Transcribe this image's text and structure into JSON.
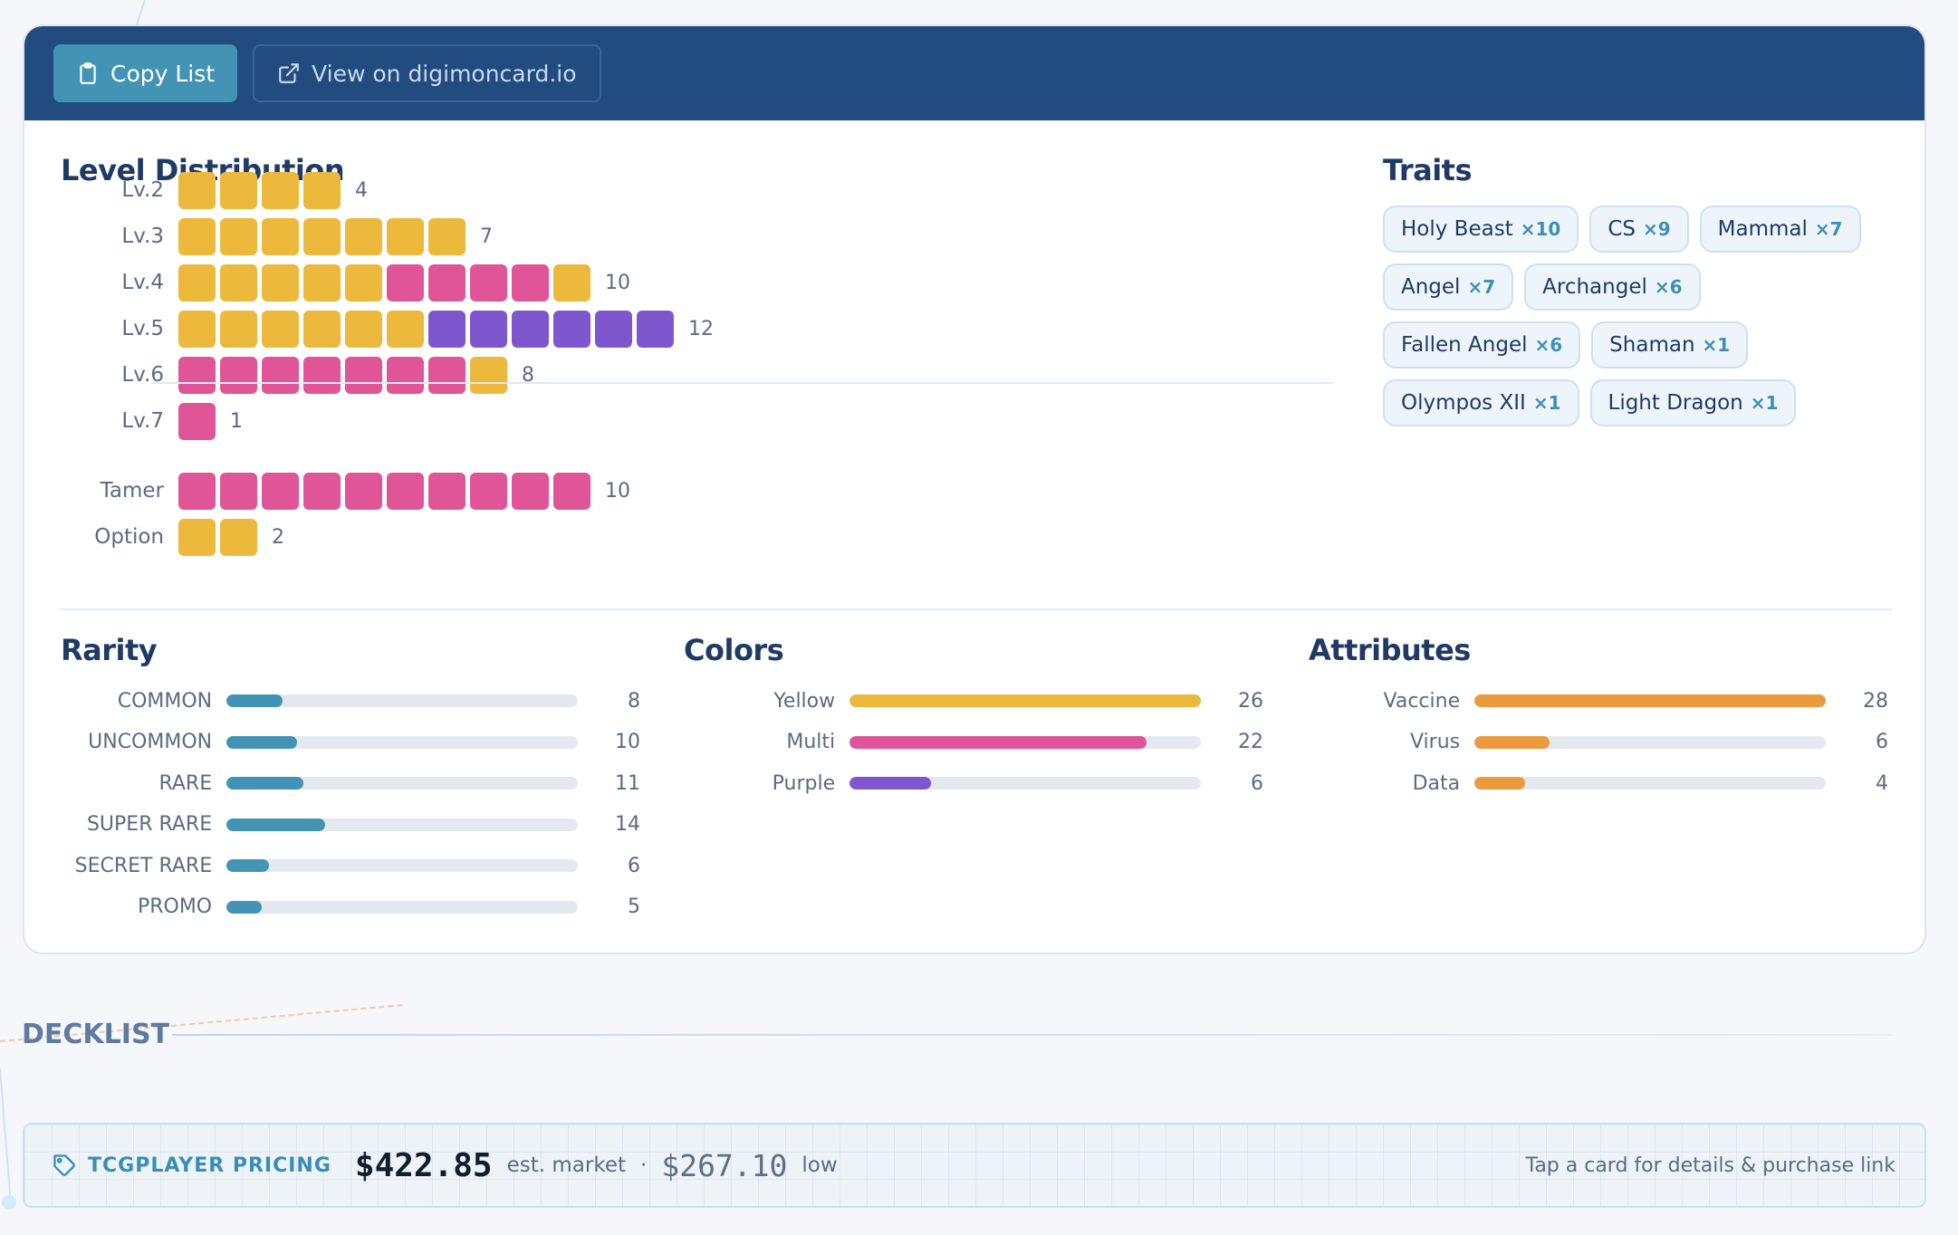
{
  "toolbar": {
    "copy_label": "Copy List",
    "view_label": "View on digimoncard.io"
  },
  "level_distribution": {
    "title": "Level Distribution",
    "rows": [
      {
        "label": "Lv.2",
        "count": "4",
        "pips": [
          "yellow",
          "yellow",
          "yellow",
          "yellow"
        ]
      },
      {
        "label": "Lv.3",
        "count": "7",
        "pips": [
          "yellow",
          "yellow",
          "yellow",
          "yellow",
          "yellow",
          "yellow",
          "yellow"
        ]
      },
      {
        "label": "Lv.4",
        "count": "10",
        "pips": [
          "yellow",
          "yellow",
          "yellow",
          "yellow",
          "yellow",
          "pink",
          "pink",
          "pink",
          "pink",
          "yellow"
        ]
      },
      {
        "label": "Lv.5",
        "count": "12",
        "pips": [
          "yellow",
          "yellow",
          "yellow",
          "yellow",
          "yellow",
          "yellow",
          "purple",
          "purple",
          "purple",
          "purple",
          "purple",
          "purple"
        ]
      },
      {
        "label": "Lv.6",
        "count": "8",
        "pips": [
          "pink",
          "pink",
          "pink",
          "pink",
          "pink",
          "pink",
          "pink",
          "yellow"
        ]
      },
      {
        "label": "Lv.7",
        "count": "1",
        "pips": [
          "pink"
        ]
      }
    ],
    "extra_rows": [
      {
        "label": "Tamer",
        "count": "10",
        "pips": [
          "pink",
          "pink",
          "pink",
          "pink",
          "pink",
          "pink",
          "pink",
          "pink",
          "pink",
          "pink"
        ]
      },
      {
        "label": "Option",
        "count": "2",
        "pips": [
          "yellow",
          "yellow"
        ]
      }
    ]
  },
  "traits": {
    "title": "Traits",
    "items": [
      {
        "name": "Holy Beast",
        "count": "×10"
      },
      {
        "name": "CS",
        "count": "×9"
      },
      {
        "name": "Mammal",
        "count": "×7"
      },
      {
        "name": "Angel",
        "count": "×7"
      },
      {
        "name": "Archangel",
        "count": "×6"
      },
      {
        "name": "Fallen Angel",
        "count": "×6"
      },
      {
        "name": "Shaman",
        "count": "×1"
      },
      {
        "name": "Olympos XII",
        "count": "×1"
      },
      {
        "name": "Light Dragon",
        "count": "×1"
      }
    ]
  },
  "rarity": {
    "title": "Rarity",
    "max": 50,
    "rows": [
      {
        "label": "COMMON",
        "value": 8,
        "count": "8",
        "color": "#4393b5"
      },
      {
        "label": "UNCOMMON",
        "value": 10,
        "count": "10",
        "color": "#4393b5"
      },
      {
        "label": "RARE",
        "value": 11,
        "count": "11",
        "color": "#4393b5"
      },
      {
        "label": "SUPER RARE",
        "value": 14,
        "count": "14",
        "color": "#4393b5"
      },
      {
        "label": "SECRET RARE",
        "value": 6,
        "count": "6",
        "color": "#4393b5"
      },
      {
        "label": "PROMO",
        "value": 5,
        "count": "5",
        "color": "#4393b5"
      }
    ]
  },
  "colors": {
    "title": "Colors",
    "max": 26,
    "rows": [
      {
        "label": "Yellow",
        "value": 26,
        "count": "26",
        "color": "#ecb93c"
      },
      {
        "label": "Multi",
        "value": 22,
        "count": "22",
        "color": "#df5597"
      },
      {
        "label": "Purple",
        "value": 6,
        "count": "6",
        "color": "#7e57cf"
      }
    ]
  },
  "attributes": {
    "title": "Attributes",
    "max": 28,
    "rows": [
      {
        "label": "Vaccine",
        "value": 28,
        "count": "28",
        "color": "#eb9a3e"
      },
      {
        "label": "Virus",
        "value": 6,
        "count": "6",
        "color": "#eb9a3e"
      },
      {
        "label": "Data",
        "value": 4,
        "count": "4",
        "color": "#eb9a3e"
      }
    ]
  },
  "decklist": {
    "title": "DECKLIST"
  },
  "pricing": {
    "label": "TCGPLAYER PRICING",
    "market": "$422.85",
    "market_note": "est. market",
    "separator": "·",
    "low": "$267.10",
    "low_note": "low",
    "hint": "Tap a card for details & purchase link"
  }
}
